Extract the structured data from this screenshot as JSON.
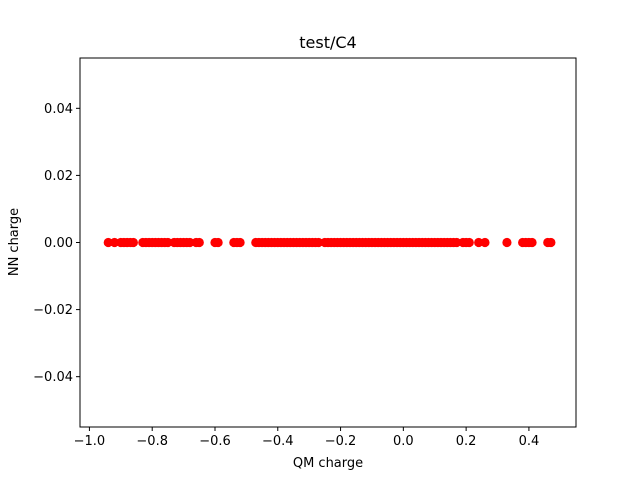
{
  "chart_data": {
    "type": "scatter",
    "title": "test/C4",
    "xlabel": "QM charge",
    "ylabel": "NN charge",
    "xlim": [
      -1.03,
      0.55
    ],
    "ylim": [
      -0.055,
      0.055
    ],
    "xticks": [
      -1.0,
      -0.8,
      -0.6,
      -0.4,
      -0.2,
      0.0,
      0.2,
      0.4
    ],
    "xtick_labels": [
      "−1.0",
      "−0.8",
      "−0.6",
      "−0.4",
      "−0.2",
      "0.0",
      "0.2",
      "0.4"
    ],
    "yticks": [
      -0.04,
      -0.02,
      0.0,
      0.02,
      0.04
    ],
    "ytick_labels": [
      "−0.04",
      "−0.02",
      "0.00",
      "0.02",
      "0.04"
    ],
    "grid": false,
    "marker_color": "#ff0000",
    "series": [
      {
        "name": "C4",
        "x": [
          -0.94,
          -0.92,
          -0.9,
          -0.89,
          -0.88,
          -0.87,
          -0.86,
          -0.83,
          -0.82,
          -0.81,
          -0.8,
          -0.79,
          -0.78,
          -0.77,
          -0.76,
          -0.75,
          -0.73,
          -0.72,
          -0.71,
          -0.7,
          -0.69,
          -0.68,
          -0.66,
          -0.65,
          -0.6,
          -0.59,
          -0.54,
          -0.53,
          -0.52,
          -0.47,
          -0.46,
          -0.45,
          -0.44,
          -0.43,
          -0.42,
          -0.41,
          -0.4,
          -0.39,
          -0.38,
          -0.37,
          -0.36,
          -0.35,
          -0.34,
          -0.33,
          -0.32,
          -0.31,
          -0.3,
          -0.29,
          -0.28,
          -0.27,
          -0.25,
          -0.24,
          -0.23,
          -0.22,
          -0.21,
          -0.2,
          -0.19,
          -0.18,
          -0.17,
          -0.16,
          -0.15,
          -0.14,
          -0.13,
          -0.12,
          -0.11,
          -0.1,
          -0.09,
          -0.08,
          -0.07,
          -0.06,
          -0.05,
          -0.04,
          -0.03,
          -0.02,
          -0.01,
          0.0,
          0.01,
          0.02,
          0.03,
          0.04,
          0.05,
          0.06,
          0.07,
          0.08,
          0.09,
          0.1,
          0.11,
          0.12,
          0.13,
          0.14,
          0.15,
          0.16,
          0.17,
          0.19,
          0.2,
          0.21,
          0.24,
          0.26,
          0.33,
          0.38,
          0.39,
          0.4,
          0.41,
          0.46,
          0.47
        ],
        "y": [
          0,
          0,
          0,
          0,
          0,
          0,
          0,
          0,
          0,
          0,
          0,
          0,
          0,
          0,
          0,
          0,
          0,
          0,
          0,
          0,
          0,
          0,
          0,
          0,
          0,
          0,
          0,
          0,
          0,
          0,
          0,
          0,
          0,
          0,
          0,
          0,
          0,
          0,
          0,
          0,
          0,
          0,
          0,
          0,
          0,
          0,
          0,
          0,
          0,
          0,
          0,
          0,
          0,
          0,
          0,
          0,
          0,
          0,
          0,
          0,
          0,
          0,
          0,
          0,
          0,
          0,
          0,
          0,
          0,
          0,
          0,
          0,
          0,
          0,
          0,
          0,
          0,
          0,
          0,
          0,
          0,
          0,
          0,
          0,
          0,
          0,
          0,
          0,
          0,
          0,
          0,
          0,
          0,
          0,
          0,
          0,
          0,
          0,
          0,
          0,
          0,
          0,
          0,
          0,
          0
        ]
      }
    ]
  }
}
